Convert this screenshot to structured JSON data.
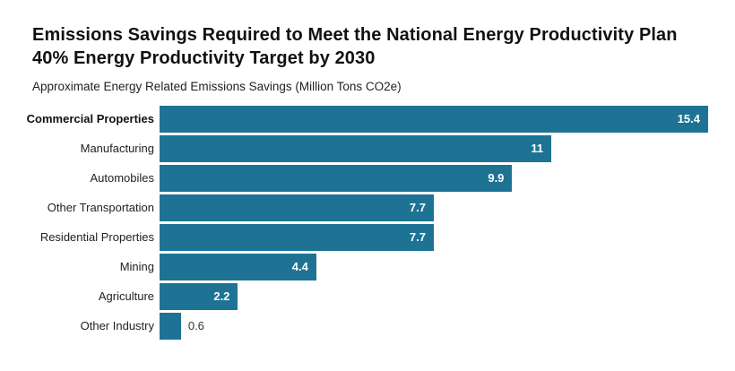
{
  "header": {
    "title": "Emissions Savings Required to Meet the National Energy Productivity Plan 40% Energy Productivity Target by 2030",
    "subtitle": "Approximate Energy Related Emissions Savings (Million Tons CO2e)"
  },
  "colors": {
    "bar": "#1e7394",
    "value_inside": "#ffffff",
    "value_outside": "#333333",
    "label": "#222222"
  },
  "chart_data": {
    "type": "bar",
    "orientation": "horizontal",
    "title": "Emissions Savings Required to Meet the National Energy Productivity Plan 40% Energy Productivity Target by 2030",
    "subtitle": "Approximate Energy Related Emissions Savings (Million Tons CO2e)",
    "xlabel": "",
    "ylabel": "",
    "xlim": [
      0,
      15.4
    ],
    "grid": false,
    "legend": false,
    "categories": [
      "Commercial Properties",
      "Manufacturing",
      "Automobiles",
      "Other Transportation",
      "Residential Properties",
      "Mining",
      "Agriculture",
      "Other Industry"
    ],
    "values": [
      15.4,
      11,
      9.9,
      7.7,
      7.7,
      4.4,
      2.2,
      0.6
    ],
    "value_labels": [
      "15.4",
      "11",
      "9.9",
      "7.7",
      "7.7",
      "4.4",
      "2.2",
      "0.6"
    ],
    "bold_categories": [
      "Commercial Properties"
    ]
  }
}
